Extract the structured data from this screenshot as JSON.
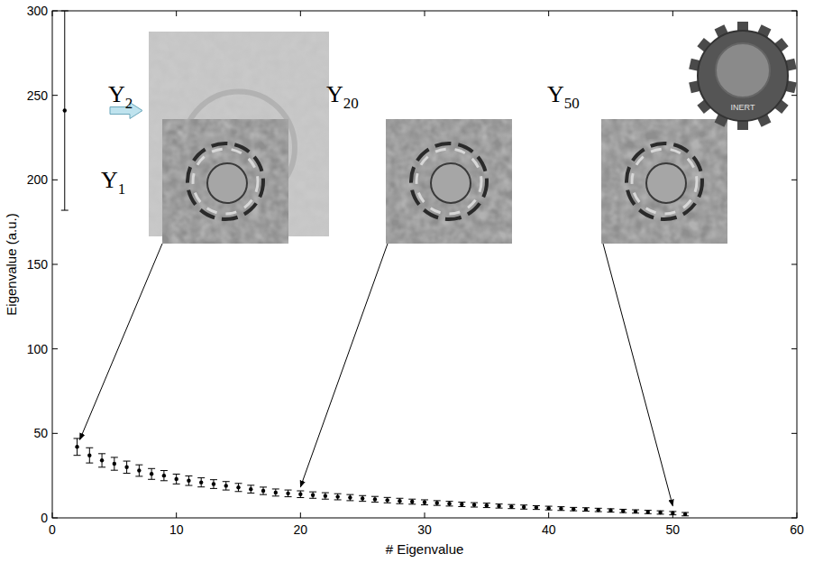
{
  "chart_data": {
    "type": "scatter",
    "x_label": "# Eigenvalue",
    "y_label": "Eigenvalue (a.u.)",
    "x": [
      1,
      2,
      3,
      4,
      5,
      6,
      7,
      8,
      9,
      10,
      11,
      12,
      13,
      14,
      15,
      16,
      17,
      18,
      19,
      20,
      21,
      22,
      23,
      24,
      25,
      26,
      27,
      28,
      29,
      30,
      31,
      32,
      33,
      34,
      35,
      36,
      37,
      38,
      39,
      40,
      41,
      42,
      43,
      44,
      45,
      46,
      47,
      48,
      49,
      50,
      51
    ],
    "values": [
      241,
      42,
      37,
      34,
      32,
      30,
      28,
      26,
      25,
      23,
      22,
      21,
      20,
      19,
      18,
      17,
      16,
      15,
      14.5,
      14,
      13.5,
      13,
      12.5,
      12,
      11.5,
      11,
      10.5,
      10,
      9.6,
      9.2,
      8.8,
      8.4,
      8,
      7.7,
      7.4,
      7,
      6.7,
      6.4,
      6.1,
      5.8,
      5.5,
      5.2,
      5,
      4.7,
      4.4,
      4.1,
      3.8,
      3.5,
      3.2,
      2.8,
      2.2
    ],
    "errors": [
      59,
      5,
      4.5,
      4,
      3.8,
      3.6,
      3.4,
      3.2,
      3,
      2.9,
      2.8,
      2.7,
      2.6,
      2.5,
      2.4,
      2.3,
      2.2,
      2.1,
      2,
      2,
      1.9,
      1.9,
      1.8,
      1.8,
      1.7,
      1.7,
      1.6,
      1.6,
      1.5,
      1.5,
      1.4,
      1.4,
      1.3,
      1.3,
      1.3,
      1.2,
      1.2,
      1.2,
      1.1,
      1.1,
      1.1,
      1,
      1,
      1,
      1,
      1,
      1,
      1,
      1,
      1,
      1
    ],
    "color": "#000000",
    "marker": "dot",
    "xlim": [
      0,
      60
    ],
    "ylim": [
      0,
      300
    ],
    "xticks": [
      0,
      10,
      20,
      30,
      40,
      50,
      60
    ],
    "yticks": [
      0,
      50,
      100,
      150,
      200,
      250,
      300
    ],
    "grid": false,
    "annotations": [
      {
        "text": "Y",
        "subscript": "1",
        "target": 1
      },
      {
        "text": "Y",
        "subscript": "2",
        "target": 2
      },
      {
        "text": "Y",
        "subscript": "20",
        "target": 20
      },
      {
        "text": "Y",
        "subscript": "50",
        "target": 50
      }
    ],
    "inset_photo": {
      "text": "INERT"
    }
  }
}
